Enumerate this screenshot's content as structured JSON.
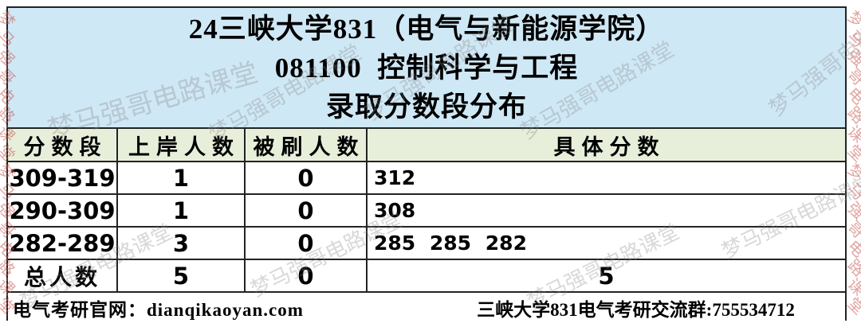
{
  "title": {
    "line1": "24三峡大学831（电气与新能源学院）",
    "line2": "081100  控制科学与工程",
    "line3": "录取分数段分布"
  },
  "table": {
    "columns": [
      "分数段",
      "上岸人数",
      "被刷人数",
      "具体分数"
    ],
    "rows": [
      {
        "range": "309-319",
        "admitted": "1",
        "rejected": "0",
        "scores": "312"
      },
      {
        "range": "290-309",
        "admitted": "1",
        "rejected": "0",
        "scores": "308"
      },
      {
        "range": "282-289",
        "admitted": "3",
        "rejected": "0",
        "scores": "285 285 282"
      }
    ],
    "total": {
      "label": "总人数",
      "admitted": "5",
      "rejected": "0",
      "scores": "5"
    }
  },
  "footer": {
    "left": "电气考研官网：dianqikaoyan.com",
    "right": "三峡大学831电气考研交流群:755534712"
  },
  "watermark": {
    "text": "梦马强哥电路课堂",
    "edge_color": "#c65c56",
    "inner_color": "#878787"
  },
  "colors": {
    "title_bg": "#cfe8f5",
    "column_header_bg": "#e7efdb",
    "border": "#232323"
  },
  "chart_data": {
    "type": "table",
    "title": "24三峡大学831（电气与新能源学院）081100 控制科学与工程 录取分数段分布",
    "columns": [
      "分数段",
      "上岸人数",
      "被刷人数",
      "具体分数"
    ],
    "rows": [
      [
        "309-319",
        1,
        0,
        "312"
      ],
      [
        "290-309",
        1,
        0,
        "308"
      ],
      [
        "282-289",
        3,
        0,
        "285 285 282"
      ],
      [
        "总人数",
        5,
        0,
        "5"
      ]
    ]
  }
}
